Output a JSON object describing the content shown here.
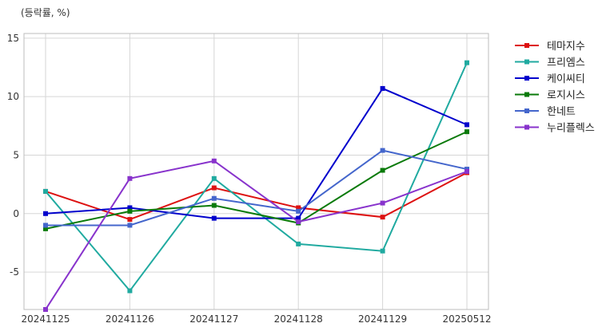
{
  "chart_data": {
    "type": "line",
    "unit_label": "(등락률, %)",
    "categories": [
      "20241125",
      "20241126",
      "20241127",
      "20241128",
      "20241129",
      "20250512"
    ],
    "ylim": [
      -8.2,
      15.4
    ],
    "yticks": [
      -5,
      0,
      5,
      10,
      15
    ],
    "grid": true,
    "legend_position": "right",
    "series": [
      {
        "name": "테마지수",
        "color": "#dd1111",
        "values": [
          1.9,
          -0.5,
          2.2,
          0.5,
          -0.3,
          3.5
        ]
      },
      {
        "name": "프리엠스",
        "color": "#20aaa0",
        "values": [
          1.9,
          -6.6,
          3.0,
          -2.6,
          -3.2,
          12.9
        ]
      },
      {
        "name": "케이씨티",
        "color": "#0000cc",
        "values": [
          0.0,
          0.5,
          -0.4,
          -0.4,
          10.7,
          7.6
        ]
      },
      {
        "name": "로지시스",
        "color": "#0a7a0a",
        "values": [
          -1.3,
          0.2,
          0.7,
          -0.8,
          3.7,
          7.0
        ]
      },
      {
        "name": "한네트",
        "color": "#4466cc",
        "values": [
          -1.0,
          -1.0,
          1.3,
          0.2,
          5.4,
          3.8
        ]
      },
      {
        "name": "누리플렉스",
        "color": "#8833cc",
        "values": [
          -8.2,
          3.0,
          4.5,
          -0.7,
          0.9,
          3.6
        ]
      }
    ]
  }
}
